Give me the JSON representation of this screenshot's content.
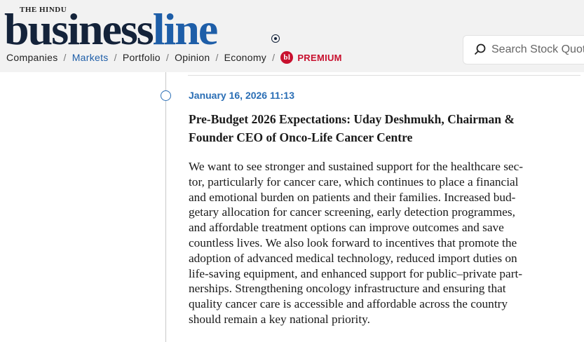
{
  "header": {
    "masthead": "THE HINDU",
    "logo_part1": "business",
    "logo_part2": "line",
    "nav": {
      "items": [
        "Companies",
        "Markets",
        "Portfolio",
        "Opinion",
        "Economy"
      ],
      "active": "Markets",
      "separator": "/",
      "premium_icon": "bl",
      "premium": "PREMIUM"
    },
    "search_placeholder": "Search Stock Quotes"
  },
  "article": {
    "timestamp": "January 16, 2026 11:13",
    "headline_lines": [
      "Pre-Budget 2026 Expectations: Uday Deshmukh, Chairman &",
      "Founder CEO of Onco-Life Cancer Centre"
    ],
    "body_lines": [
      "We want to see stronger and sustained support for the healthcare sec-",
      "tor, particularly for cancer care, which continues to place a financial",
      "and emotional burden on patients and their families. Increased bud-",
      "getary allocation for cancer screening, early detection programmes,",
      "and affordable treatment options can improve outcomes and save",
      "countless lives. We also look forward to incentives that promote the",
      "adoption of advanced medical technology, reduced import duties on",
      "life-saving equipment, and enhanced support for public–private part-",
      "nerships. Strengthening oncology infrastructure and ensuring that",
      "quality cancer care is accessible and affordable across the country",
      "should remain a key national priority."
    ]
  }
}
